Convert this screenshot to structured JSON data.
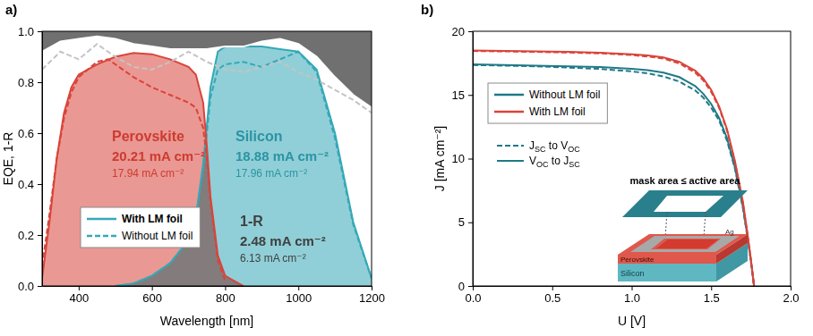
{
  "chart_data": [
    {
      "type": "line",
      "title": "a)",
      "x_label": "Wavelength [nm]",
      "y_label": "EQE, 1-R",
      "xlim": [
        300,
        1200
      ],
      "xticks": [
        400,
        600,
        800,
        1000,
        1200
      ],
      "ylim": [
        0,
        1
      ],
      "yticks": [
        {
          "value": 0,
          "label": "0.0"
        },
        {
          "value": 0.2,
          "label": "0.2"
        },
        {
          "value": 0.4,
          "label": "0.4"
        },
        {
          "value": 0.6,
          "label": "0.6"
        },
        {
          "value": 0.8,
          "label": "0.8"
        },
        {
          "value": 1,
          "label": "1.0"
        }
      ],
      "legend": "lower left",
      "series": [
        {
          "name": "With LM foil",
          "type": "area",
          "color": "#35a8b7",
          "line_style": "solid",
          "x": [
            500,
            550,
            600,
            650,
            700,
            720,
            740,
            760,
            780,
            800,
            850,
            900,
            950,
            1000,
            1050,
            1100,
            1150,
            1200
          ],
          "values": [
            0,
            0.01,
            0.04,
            0.09,
            0.18,
            0.27,
            0.48,
            0.78,
            0.92,
            0.94,
            0.94,
            0.94,
            0.93,
            0.92,
            0.85,
            0.6,
            0.25,
            0.03
          ]
        },
        {
          "name": "Without LM foil",
          "type": "line",
          "color": "#35a8b7",
          "line_style": "dashed",
          "x": [
            500,
            550,
            600,
            650,
            700,
            720,
            740,
            760,
            780,
            800,
            850,
            900,
            950,
            1000,
            1050,
            1100,
            1150,
            1200
          ],
          "values": [
            0,
            0.01,
            0.04,
            0.09,
            0.18,
            0.27,
            0.46,
            0.74,
            0.85,
            0.87,
            0.88,
            0.86,
            0.89,
            0.92,
            0.84,
            0.58,
            0.24,
            0.03
          ]
        },
        {
          "name": "With LM foil",
          "type": "area",
          "color": "#d9443a",
          "line_style": "solid",
          "x": [
            300,
            320,
            340,
            360,
            380,
            400,
            450,
            500,
            550,
            600,
            650,
            700,
            720,
            740,
            750,
            760,
            780,
            800,
            850
          ],
          "values": [
            0.03,
            0.25,
            0.5,
            0.68,
            0.78,
            0.83,
            0.87,
            0.9,
            0.915,
            0.91,
            0.89,
            0.86,
            0.83,
            0.72,
            0.55,
            0.35,
            0.12,
            0.04,
            0
          ]
        },
        {
          "name": "Without LM foil",
          "type": "line",
          "color": "#d9443a",
          "line_style": "dashed",
          "x": [
            300,
            320,
            340,
            360,
            380,
            400,
            450,
            480,
            500,
            550,
            600,
            650,
            700,
            720,
            740,
            750,
            760,
            780,
            800
          ],
          "values": [
            0.08,
            0.28,
            0.5,
            0.66,
            0.76,
            0.82,
            0.88,
            0.89,
            0.87,
            0.82,
            0.78,
            0.75,
            0.72,
            0.7,
            0.62,
            0.5,
            0.33,
            0.1,
            0.02
          ]
        },
        {
          "name": "With LM foil",
          "type": "area-above",
          "color": "#707070",
          "line_style": "solid",
          "x": [
            300,
            350,
            400,
            450,
            500,
            550,
            600,
            650,
            700,
            750,
            800,
            850,
            900,
            950,
            1000,
            1050,
            1100,
            1150,
            1200
          ],
          "values": [
            0.92,
            0.96,
            0.97,
            0.98,
            0.97,
            0.95,
            0.94,
            0.93,
            0.93,
            0.93,
            0.94,
            0.94,
            0.96,
            0.97,
            0.95,
            0.9,
            0.82,
            0.75,
            0.7
          ]
        },
        {
          "name": "Without LM foil",
          "type": "line",
          "color": "#c4c4c4",
          "line_style": "dashed",
          "x": [
            300,
            350,
            400,
            450,
            500,
            550,
            600,
            650,
            700,
            750,
            800,
            850,
            900,
            950,
            1000,
            1050,
            1100,
            1150,
            1200
          ],
          "values": [
            0.85,
            0.92,
            0.89,
            0.95,
            0.9,
            0.86,
            0.85,
            0.88,
            0.92,
            0.88,
            0.85,
            0.84,
            0.86,
            0.88,
            0.84,
            0.81,
            0.77,
            0.73,
            0.68
          ]
        }
      ],
      "annotations": [
        {
          "text": "Perovskite",
          "with": "20.21 mA cm⁻²",
          "without": "17.94 mA cm⁻²",
          "color": "#cc3b31"
        },
        {
          "text": "Silicon",
          "with": "18.88 mA cm⁻²",
          "without": "17.96 mA cm⁻²",
          "color": "#2a94a3"
        },
        {
          "text": "1-R",
          "with": "2.48 mA cm⁻²",
          "without": "6.13 mA cm⁻²",
          "color": "#404040"
        }
      ]
    },
    {
      "type": "line",
      "title": "b)",
      "x_label": "U [V]",
      "y_label": "J [mA cm⁻²]",
      "xlim": [
        0,
        2
      ],
      "xticks": [
        {
          "value": 0,
          "label": "0.0"
        },
        {
          "value": 0.5,
          "label": "0.5"
        },
        {
          "value": 1,
          "label": "1.0"
        },
        {
          "value": 1.5,
          "label": "1.5"
        },
        {
          "value": 2,
          "label": "2.0"
        }
      ],
      "ylim": [
        0,
        20
      ],
      "yticks": [
        0,
        5,
        10,
        15,
        20
      ],
      "legend": "upper left",
      "series": [
        {
          "name": "Without LM foil",
          "color": "#1f7a87",
          "line_style": "solid",
          "x": [
            0,
            0.2,
            0.4,
            0.6,
            0.8,
            1.0,
            1.1,
            1.2,
            1.3,
            1.4,
            1.45,
            1.5,
            1.55,
            1.6,
            1.65,
            1.7,
            1.73,
            1.75,
            1.77
          ],
          "values": [
            17.4,
            17.35,
            17.3,
            17.25,
            17.2,
            17.05,
            16.95,
            16.75,
            16.4,
            15.7,
            15.1,
            14.3,
            13.2,
            11.6,
            9.3,
            6.2,
            3.8,
            2.0,
            0
          ]
        },
        {
          "name": "Without LM foil",
          "color": "#1f7a87",
          "line_style": "dashed",
          "x": [
            0,
            0.2,
            0.4,
            0.6,
            0.8,
            1.0,
            1.1,
            1.2,
            1.3,
            1.4,
            1.45,
            1.5,
            1.55,
            1.6,
            1.65,
            1.7,
            1.73,
            1.75,
            1.77
          ],
          "values": [
            17.35,
            17.3,
            17.25,
            17.15,
            17.05,
            16.85,
            16.7,
            16.45,
            16.05,
            15.35,
            14.8,
            14.0,
            13.0,
            11.4,
            9.2,
            6.1,
            3.7,
            1.9,
            0
          ]
        },
        {
          "name": "With LM foil",
          "color": "#d9443a",
          "line_style": "solid",
          "x": [
            0,
            0.2,
            0.4,
            0.6,
            0.8,
            1.0,
            1.1,
            1.2,
            1.3,
            1.4,
            1.45,
            1.5,
            1.55,
            1.6,
            1.65,
            1.7,
            1.73,
            1.75,
            1.77
          ],
          "values": [
            18.5,
            18.45,
            18.42,
            18.38,
            18.32,
            18.2,
            18.1,
            17.95,
            17.6,
            16.9,
            16.3,
            15.4,
            14.1,
            12.3,
            9.8,
            6.6,
            4.0,
            2.1,
            0
          ]
        },
        {
          "name": "With LM foil",
          "color": "#d9443a",
          "line_style": "dashed",
          "x": [
            0,
            0.2,
            0.4,
            0.6,
            0.8,
            1.0,
            1.1,
            1.2,
            1.3,
            1.4,
            1.45,
            1.5,
            1.55,
            1.6,
            1.65,
            1.7,
            1.73,
            1.75,
            1.77
          ],
          "values": [
            18.45,
            18.42,
            18.38,
            18.33,
            18.27,
            18.13,
            18.02,
            17.85,
            17.48,
            16.75,
            16.15,
            15.25,
            14.0,
            12.2,
            9.7,
            6.5,
            3.9,
            2.0,
            0
          ]
        }
      ],
      "line_style_legend": [
        {
          "label": "JSC to VOC",
          "line_style": "dashed"
        },
        {
          "label": "VOC to JSC",
          "line_style": "solid"
        }
      ],
      "inset": {
        "title": "mask area ≤ active area",
        "labels": [
          "Ag",
          "Perovskite",
          "Silicon"
        ]
      }
    }
  ]
}
